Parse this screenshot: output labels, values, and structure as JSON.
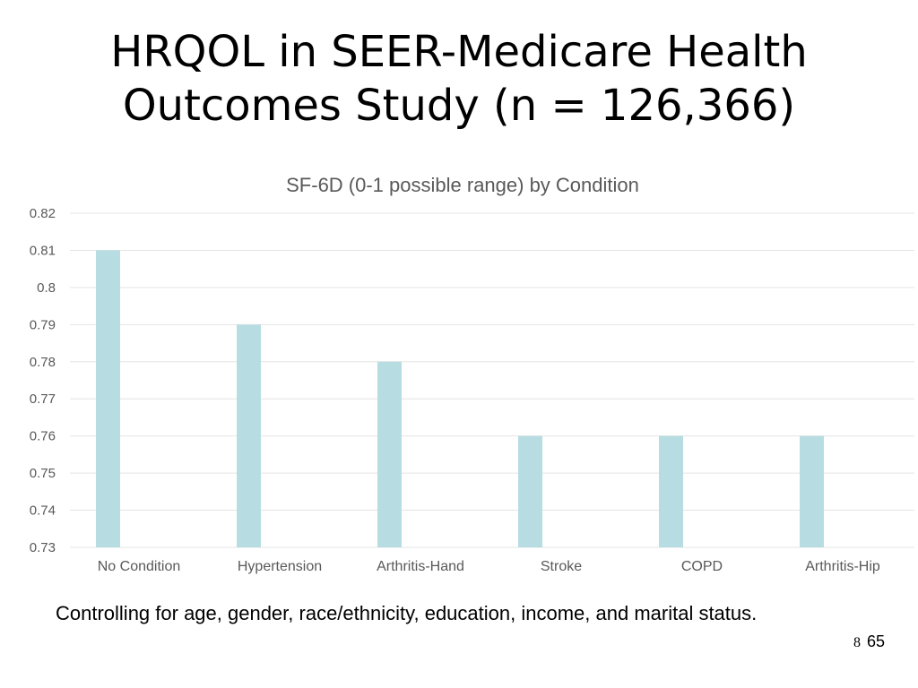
{
  "slide": {
    "title_line1": "HRQOL in SEER-Medicare Health",
    "title_line2": "Outcomes Study (n = 126,366)",
    "footnote": "Controlling for age, gender, race/ethnicity, education, income, and marital status.",
    "page_small": "8",
    "page_number": "65"
  },
  "chart_data": {
    "type": "bar",
    "title": "SF-6D (0-1 possible range) by Condition",
    "xlabel": "",
    "ylabel": "",
    "categories": [
      "No Condition",
      "Hypertension",
      "Arthritis-Hand",
      "Stroke",
      "COPD",
      "Arthritis-Hip"
    ],
    "values": [
      0.81,
      0.79,
      0.78,
      0.76,
      0.76,
      0.76
    ],
    "ylim": [
      0.73,
      0.82
    ],
    "yticks": [
      "0.73",
      "0.74",
      "0.75",
      "0.76",
      "0.77",
      "0.78",
      "0.79",
      "0.8",
      "0.81",
      "0.82"
    ],
    "grid": true,
    "legend": "none",
    "bar_color": "#b7dde2",
    "grid_color": "#e4e4e4",
    "text_color": "#595959"
  }
}
